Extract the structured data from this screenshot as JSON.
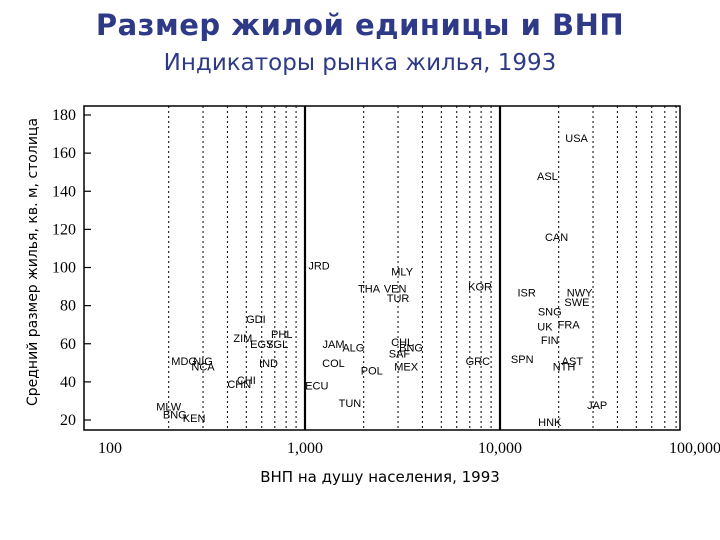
{
  "title": "Размер жилой единицы и ВНП",
  "subtitle": "Индикаторы рынка жилья, 1993",
  "chart_data": {
    "type": "scatter",
    "title": "Размер жилой единицы и ВНП",
    "subtitle": "Индикаторы рынка жилья, 1993",
    "xlabel": "ВНП на душу населения, 1993",
    "ylabel": "Средний размер жилья, кв. м, столица",
    "xscale": "log",
    "xlim": [
      100,
      100000
    ],
    "ylim": [
      15,
      185
    ],
    "xticks": [
      100,
      1000,
      10000,
      100000
    ],
    "xtick_labels": [
      "100",
      "1,000",
      "10,000",
      "100,000"
    ],
    "yticks": [
      20,
      40,
      60,
      80,
      100,
      120,
      140,
      160,
      180
    ],
    "ytick_labels": [
      "20",
      "40",
      "60",
      "80",
      "100",
      "120",
      "140",
      "160",
      "180"
    ],
    "grid": "vertical dashed minor lines at log decades; solid lines at 1,000 and 10,000",
    "points": [
      {
        "label": "USA",
        "x": 24700,
        "y": 168
      },
      {
        "label": "ASL",
        "x": 17500,
        "y": 148
      },
      {
        "label": "CAN",
        "x": 19500,
        "y": 116
      },
      {
        "label": "JRD",
        "x": 1180,
        "y": 101
      },
      {
        "label": "MLY",
        "x": 3150,
        "y": 98
      },
      {
        "label": "KOR",
        "x": 7900,
        "y": 90
      },
      {
        "label": "THA",
        "x": 2130,
        "y": 89
      },
      {
        "label": "VEN",
        "x": 2900,
        "y": 89
      },
      {
        "label": "TUR",
        "x": 3000,
        "y": 84
      },
      {
        "label": "ISR",
        "x": 13700,
        "y": 87
      },
      {
        "label": "NWY",
        "x": 25600,
        "y": 87
      },
      {
        "label": "SWE",
        "x": 24800,
        "y": 82
      },
      {
        "label": "SNG",
        "x": 18000,
        "y": 77
      },
      {
        "label": "UK",
        "x": 17000,
        "y": 69
      },
      {
        "label": "FRA",
        "x": 22500,
        "y": 70
      },
      {
        "label": "FIN",
        "x": 18000,
        "y": 62
      },
      {
        "label": "GDI",
        "x": 560,
        "y": 73
      },
      {
        "label": "ZIM",
        "x": 480,
        "y": 63
      },
      {
        "label": "PHL",
        "x": 760,
        "y": 65
      },
      {
        "label": "EGY",
        "x": 600,
        "y": 60
      },
      {
        "label": "SGL",
        "x": 720,
        "y": 60
      },
      {
        "label": "JAM",
        "x": 1400,
        "y": 60
      },
      {
        "label": "ALG",
        "x": 1770,
        "y": 58
      },
      {
        "label": "CHL",
        "x": 3150,
        "y": 61
      },
      {
        "label": "BNG",
        "x": 3500,
        "y": 58
      },
      {
        "label": "SAF",
        "x": 3050,
        "y": 55
      },
      {
        "label": "MDG",
        "x": 240,
        "y": 51
      },
      {
        "label": "NIG",
        "x": 300,
        "y": 51
      },
      {
        "label": "NCA",
        "x": 300,
        "y": 48
      },
      {
        "label": "IND",
        "x": 650,
        "y": 50
      },
      {
        "label": "COL",
        "x": 1400,
        "y": 50
      },
      {
        "label": "POL",
        "x": 2200,
        "y": 46
      },
      {
        "label": "MEX",
        "x": 3300,
        "y": 48
      },
      {
        "label": "GRC",
        "x": 7700,
        "y": 51
      },
      {
        "label": "SPN",
        "x": 13000,
        "y": 52
      },
      {
        "label": "AST",
        "x": 23500,
        "y": 51
      },
      {
        "label": "NTH",
        "x": 21300,
        "y": 48
      },
      {
        "label": "CHI",
        "x": 500,
        "y": 41
      },
      {
        "label": "CHN",
        "x": 460,
        "y": 39
      },
      {
        "label": "ECU",
        "x": 1150,
        "y": 38
      },
      {
        "label": "TUN",
        "x": 1700,
        "y": 29
      },
      {
        "label": "MLW",
        "x": 200,
        "y": 27
      },
      {
        "label": "BNG",
        "x": 215,
        "y": 23
      },
      {
        "label": "KEN",
        "x": 270,
        "y": 21
      },
      {
        "label": "JAP",
        "x": 31500,
        "y": 28
      },
      {
        "label": "HNK",
        "x": 18000,
        "y": 19
      }
    ]
  }
}
